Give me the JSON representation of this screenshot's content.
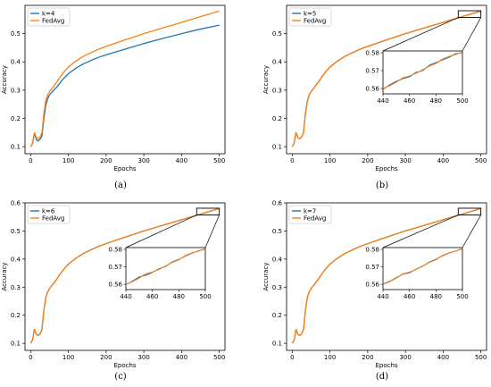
{
  "chart_data": [
    {
      "type": "line",
      "caption": "(a)",
      "xlabel": "Epochs",
      "ylabel": "Accuracy",
      "xlim": [
        -15,
        515
      ],
      "ylim": [
        0.075,
        0.6
      ],
      "xticks": [
        0,
        100,
        200,
        300,
        400,
        500
      ],
      "yticks": [
        0.1,
        0.2,
        0.3,
        0.4,
        0.5
      ],
      "legend": "top-left",
      "series": [
        {
          "name": "k=4",
          "color": "#1f77b4",
          "x": [
            0,
            5,
            10,
            15,
            20,
            25,
            30,
            35,
            40,
            45,
            50,
            60,
            70,
            80,
            90,
            100,
            120,
            140,
            160,
            180,
            200,
            250,
            300,
            350,
            400,
            450,
            500
          ],
          "y": [
            0.1,
            0.11,
            0.148,
            0.125,
            0.12,
            0.126,
            0.138,
            0.2,
            0.245,
            0.27,
            0.283,
            0.298,
            0.312,
            0.33,
            0.345,
            0.358,
            0.378,
            0.393,
            0.405,
            0.416,
            0.425,
            0.445,
            0.465,
            0.483,
            0.5,
            0.516,
            0.53
          ]
        },
        {
          "name": "FedAvg",
          "color": "#ff7f0e",
          "x": [
            0,
            5,
            10,
            15,
            20,
            25,
            30,
            35,
            40,
            45,
            50,
            60,
            70,
            80,
            90,
            100,
            120,
            140,
            160,
            180,
            200,
            250,
            300,
            350,
            400,
            450,
            500
          ],
          "y": [
            0.1,
            0.112,
            0.15,
            0.132,
            0.128,
            0.134,
            0.15,
            0.218,
            0.262,
            0.283,
            0.295,
            0.312,
            0.33,
            0.35,
            0.367,
            0.382,
            0.403,
            0.42,
            0.433,
            0.445,
            0.455,
            0.478,
            0.5,
            0.52,
            0.54,
            0.56,
            0.58
          ]
        }
      ]
    },
    {
      "type": "line",
      "caption": "(b)",
      "xlabel": "Epochs",
      "ylabel": "Accuracy",
      "xlim": [
        -15,
        515
      ],
      "ylim": [
        0.075,
        0.6
      ],
      "xticks": [
        0,
        100,
        200,
        300,
        400,
        500
      ],
      "yticks": [
        0.1,
        0.2,
        0.3,
        0.4,
        0.5
      ],
      "legend": "top-left",
      "series": [
        {
          "name": "k=5",
          "color": "#1f77b4",
          "x": [
            0,
            5,
            10,
            15,
            20,
            25,
            30,
            35,
            40,
            45,
            50,
            60,
            70,
            80,
            90,
            100,
            120,
            140,
            160,
            180,
            200,
            250,
            300,
            350,
            400,
            450,
            500
          ],
          "y": [
            0.1,
            0.112,
            0.15,
            0.132,
            0.128,
            0.134,
            0.15,
            0.218,
            0.262,
            0.283,
            0.295,
            0.312,
            0.33,
            0.35,
            0.367,
            0.382,
            0.403,
            0.42,
            0.433,
            0.445,
            0.455,
            0.478,
            0.5,
            0.52,
            0.54,
            0.56,
            0.58
          ]
        },
        {
          "name": "FedAvg",
          "color": "#ff7f0e",
          "x": [
            0,
            5,
            10,
            15,
            20,
            25,
            30,
            35,
            40,
            45,
            50,
            60,
            70,
            80,
            90,
            100,
            120,
            140,
            160,
            180,
            200,
            250,
            300,
            350,
            400,
            450,
            500
          ],
          "y": [
            0.1,
            0.112,
            0.15,
            0.132,
            0.128,
            0.134,
            0.15,
            0.218,
            0.262,
            0.283,
            0.295,
            0.312,
            0.33,
            0.35,
            0.367,
            0.382,
            0.403,
            0.42,
            0.433,
            0.445,
            0.455,
            0.478,
            0.5,
            0.52,
            0.54,
            0.56,
            0.58
          ]
        }
      ],
      "inset": {
        "xlim": [
          440,
          500
        ],
        "ylim": [
          0.557,
          0.581
        ],
        "xticks": [
          440,
          460,
          480,
          500
        ],
        "yticks": [
          0.56,
          0.57,
          0.58
        ],
        "series": [
          {
            "name": "k=5",
            "color": "#1f77b4",
            "x": [
              440,
              445,
              450,
              455,
              460,
              465,
              470,
              475,
              480,
              485,
              490,
              495,
              500
            ],
            "y": [
              0.5595,
              0.562,
              0.564,
              0.5655,
              0.5665,
              0.569,
              0.57,
              0.573,
              0.5745,
              0.576,
              0.5775,
              0.5795,
              0.58
            ]
          },
          {
            "name": "FedAvg",
            "color": "#ff7f0e",
            "x": [
              440,
              445,
              450,
              455,
              460,
              465,
              470,
              475,
              480,
              485,
              490,
              495,
              500
            ],
            "y": [
              0.56,
              0.5615,
              0.5635,
              0.566,
              0.567,
              0.5685,
              0.5705,
              0.5725,
              0.574,
              0.5765,
              0.578,
              0.579,
              0.5805
            ]
          }
        ]
      }
    },
    {
      "type": "line",
      "caption": "(c)",
      "xlabel": "Epochs",
      "ylabel": "Accuracy",
      "xlim": [
        -15,
        515
      ],
      "ylim": [
        0.075,
        0.6
      ],
      "xticks": [
        0,
        100,
        200,
        300,
        400,
        500
      ],
      "yticks": [
        0.1,
        0.2,
        0.3,
        0.4,
        0.5,
        0.6
      ],
      "legend": "top-left",
      "series": [
        {
          "name": "k=6",
          "color": "#1f77b4",
          "x": [
            0,
            5,
            10,
            15,
            20,
            25,
            30,
            35,
            40,
            45,
            50,
            60,
            70,
            80,
            90,
            100,
            120,
            140,
            160,
            180,
            200,
            250,
            300,
            350,
            400,
            450,
            500
          ],
          "y": [
            0.1,
            0.112,
            0.15,
            0.132,
            0.128,
            0.134,
            0.15,
            0.218,
            0.262,
            0.283,
            0.295,
            0.312,
            0.33,
            0.35,
            0.367,
            0.382,
            0.403,
            0.42,
            0.433,
            0.445,
            0.455,
            0.478,
            0.5,
            0.52,
            0.54,
            0.56,
            0.58
          ]
        },
        {
          "name": "FedAvg",
          "color": "#ff7f0e",
          "x": [
            0,
            5,
            10,
            15,
            20,
            25,
            30,
            35,
            40,
            45,
            50,
            60,
            70,
            80,
            90,
            100,
            120,
            140,
            160,
            180,
            200,
            250,
            300,
            350,
            400,
            450,
            500
          ],
          "y": [
            0.1,
            0.112,
            0.15,
            0.132,
            0.128,
            0.134,
            0.15,
            0.218,
            0.262,
            0.283,
            0.295,
            0.312,
            0.33,
            0.35,
            0.367,
            0.382,
            0.403,
            0.42,
            0.433,
            0.445,
            0.455,
            0.478,
            0.5,
            0.52,
            0.54,
            0.56,
            0.58
          ]
        }
      ],
      "inset": {
        "xlim": [
          440,
          500
        ],
        "ylim": [
          0.557,
          0.581
        ],
        "xticks": [
          440,
          460,
          480,
          500
        ],
        "yticks": [
          0.56,
          0.57,
          0.58
        ],
        "series": [
          {
            "name": "k=6",
            "color": "#1f77b4",
            "x": [
              440,
              445,
              450,
              455,
              460,
              465,
              470,
              475,
              480,
              485,
              490,
              495,
              500
            ],
            "y": [
              0.5598,
              0.5618,
              0.5642,
              0.5652,
              0.5668,
              0.5688,
              0.5702,
              0.5728,
              0.5742,
              0.5762,
              0.5778,
              0.5792,
              0.5802
            ]
          },
          {
            "name": "FedAvg",
            "color": "#ff7f0e",
            "x": [
              440,
              445,
              450,
              455,
              460,
              465,
              470,
              475,
              480,
              485,
              490,
              495,
              500
            ],
            "y": [
              0.56,
              0.5615,
              0.5635,
              0.566,
              0.567,
              0.5685,
              0.5705,
              0.5725,
              0.574,
              0.5765,
              0.578,
              0.579,
              0.5805
            ]
          }
        ]
      }
    },
    {
      "type": "line",
      "caption": "(d)",
      "xlabel": "Epochs",
      "ylabel": "Accuracy",
      "xlim": [
        -15,
        515
      ],
      "ylim": [
        0.075,
        0.6
      ],
      "xticks": [
        0,
        100,
        200,
        300,
        400,
        500
      ],
      "yticks": [
        0.1,
        0.2,
        0.3,
        0.4,
        0.5,
        0.6
      ],
      "legend": "top-left",
      "series": [
        {
          "name": "k=7",
          "color": "#1f77b4",
          "x": [
            0,
            5,
            10,
            15,
            20,
            25,
            30,
            35,
            40,
            45,
            50,
            60,
            70,
            80,
            90,
            100,
            120,
            140,
            160,
            180,
            200,
            250,
            300,
            350,
            400,
            450,
            500
          ],
          "y": [
            0.1,
            0.112,
            0.15,
            0.132,
            0.128,
            0.134,
            0.15,
            0.218,
            0.262,
            0.283,
            0.295,
            0.312,
            0.33,
            0.35,
            0.367,
            0.382,
            0.403,
            0.42,
            0.433,
            0.445,
            0.455,
            0.478,
            0.5,
            0.52,
            0.54,
            0.56,
            0.58
          ]
        },
        {
          "name": "FedAvg",
          "color": "#ff7f0e",
          "x": [
            0,
            5,
            10,
            15,
            20,
            25,
            30,
            35,
            40,
            45,
            50,
            60,
            70,
            80,
            90,
            100,
            120,
            140,
            160,
            180,
            200,
            250,
            300,
            350,
            400,
            450,
            500
          ],
          "y": [
            0.1,
            0.112,
            0.15,
            0.132,
            0.128,
            0.134,
            0.15,
            0.218,
            0.262,
            0.283,
            0.295,
            0.312,
            0.33,
            0.35,
            0.367,
            0.382,
            0.403,
            0.42,
            0.433,
            0.445,
            0.455,
            0.478,
            0.5,
            0.52,
            0.54,
            0.56,
            0.58
          ]
        }
      ],
      "inset": {
        "xlim": [
          440,
          500
        ],
        "ylim": [
          0.557,
          0.581
        ],
        "xticks": [
          440,
          460,
          480,
          500
        ],
        "yticks": [
          0.56,
          0.57,
          0.58
        ],
        "series": [
          {
            "name": "k=7",
            "color": "#1f77b4",
            "x": [
              440,
              445,
              450,
              455,
              460,
              465,
              470,
              475,
              480,
              485,
              490,
              495,
              500
            ],
            "y": [
              0.5602,
              0.5617,
              0.5638,
              0.5658,
              0.5666,
              0.5687,
              0.5703,
              0.5727,
              0.5743,
              0.5763,
              0.5779,
              0.5791,
              0.5803
            ]
          },
          {
            "name": "FedAvg",
            "color": "#ff7f0e",
            "x": [
              440,
              445,
              450,
              455,
              460,
              465,
              470,
              475,
              480,
              485,
              490,
              495,
              500
            ],
            "y": [
              0.56,
              0.5615,
              0.5635,
              0.566,
              0.567,
              0.5685,
              0.5705,
              0.5725,
              0.574,
              0.5765,
              0.578,
              0.579,
              0.5805
            ]
          }
        ]
      }
    }
  ]
}
